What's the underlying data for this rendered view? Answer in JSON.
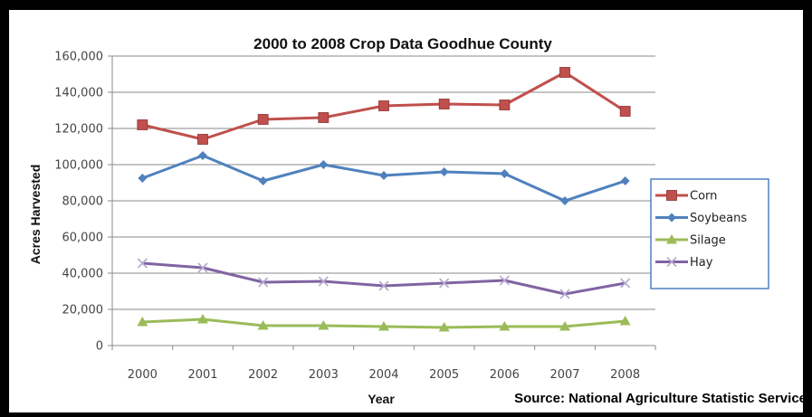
{
  "chart_data": {
    "type": "line",
    "title": "2000 to 2008 Crop Data Goodhue County",
    "xlabel": "Year",
    "ylabel": "Acres Harvested",
    "source": "Source: National Agriculture Statistic Service",
    "x": [
      "2000",
      "2001",
      "2002",
      "2003",
      "2004",
      "2005",
      "2006",
      "2007",
      "2008"
    ],
    "ylim": [
      0,
      160000
    ],
    "yticks": [
      {
        "value": 0,
        "label": "0"
      },
      {
        "value": 20000,
        "label": "20,000"
      },
      {
        "value": 40000,
        "label": "40,000"
      },
      {
        "value": 60000,
        "label": "60,000"
      },
      {
        "value": 80000,
        "label": "80,000"
      },
      {
        "value": 100000,
        "label": "100,000"
      },
      {
        "value": 120000,
        "label": "120,000"
      },
      {
        "value": 140000,
        "label": "140,000"
      },
      {
        "value": 160000,
        "label": "160,000"
      }
    ],
    "grid": "horizontal",
    "legend_position": "right",
    "series": [
      {
        "name": "Corn",
        "color": "#C0504D",
        "marker": "square",
        "values": [
          122000,
          114000,
          125000,
          126000,
          132500,
          133500,
          133000,
          151000,
          129500
        ]
      },
      {
        "name": "Soybeans",
        "color": "#4F81BD",
        "marker": "diamond",
        "values": [
          92500,
          105000,
          91000,
          100000,
          94000,
          96000,
          95000,
          80000,
          91000
        ]
      },
      {
        "name": "Silage",
        "color": "#9BBB59",
        "marker": "triangle",
        "values": [
          13000,
          14500,
          11000,
          11000,
          10500,
          10000,
          10500,
          10500,
          13500
        ]
      },
      {
        "name": "Hay",
        "color": "#8064A2",
        "marker": "x",
        "values": [
          45500,
          43000,
          35000,
          35500,
          33000,
          34500,
          36000,
          28500,
          34500
        ]
      }
    ]
  }
}
